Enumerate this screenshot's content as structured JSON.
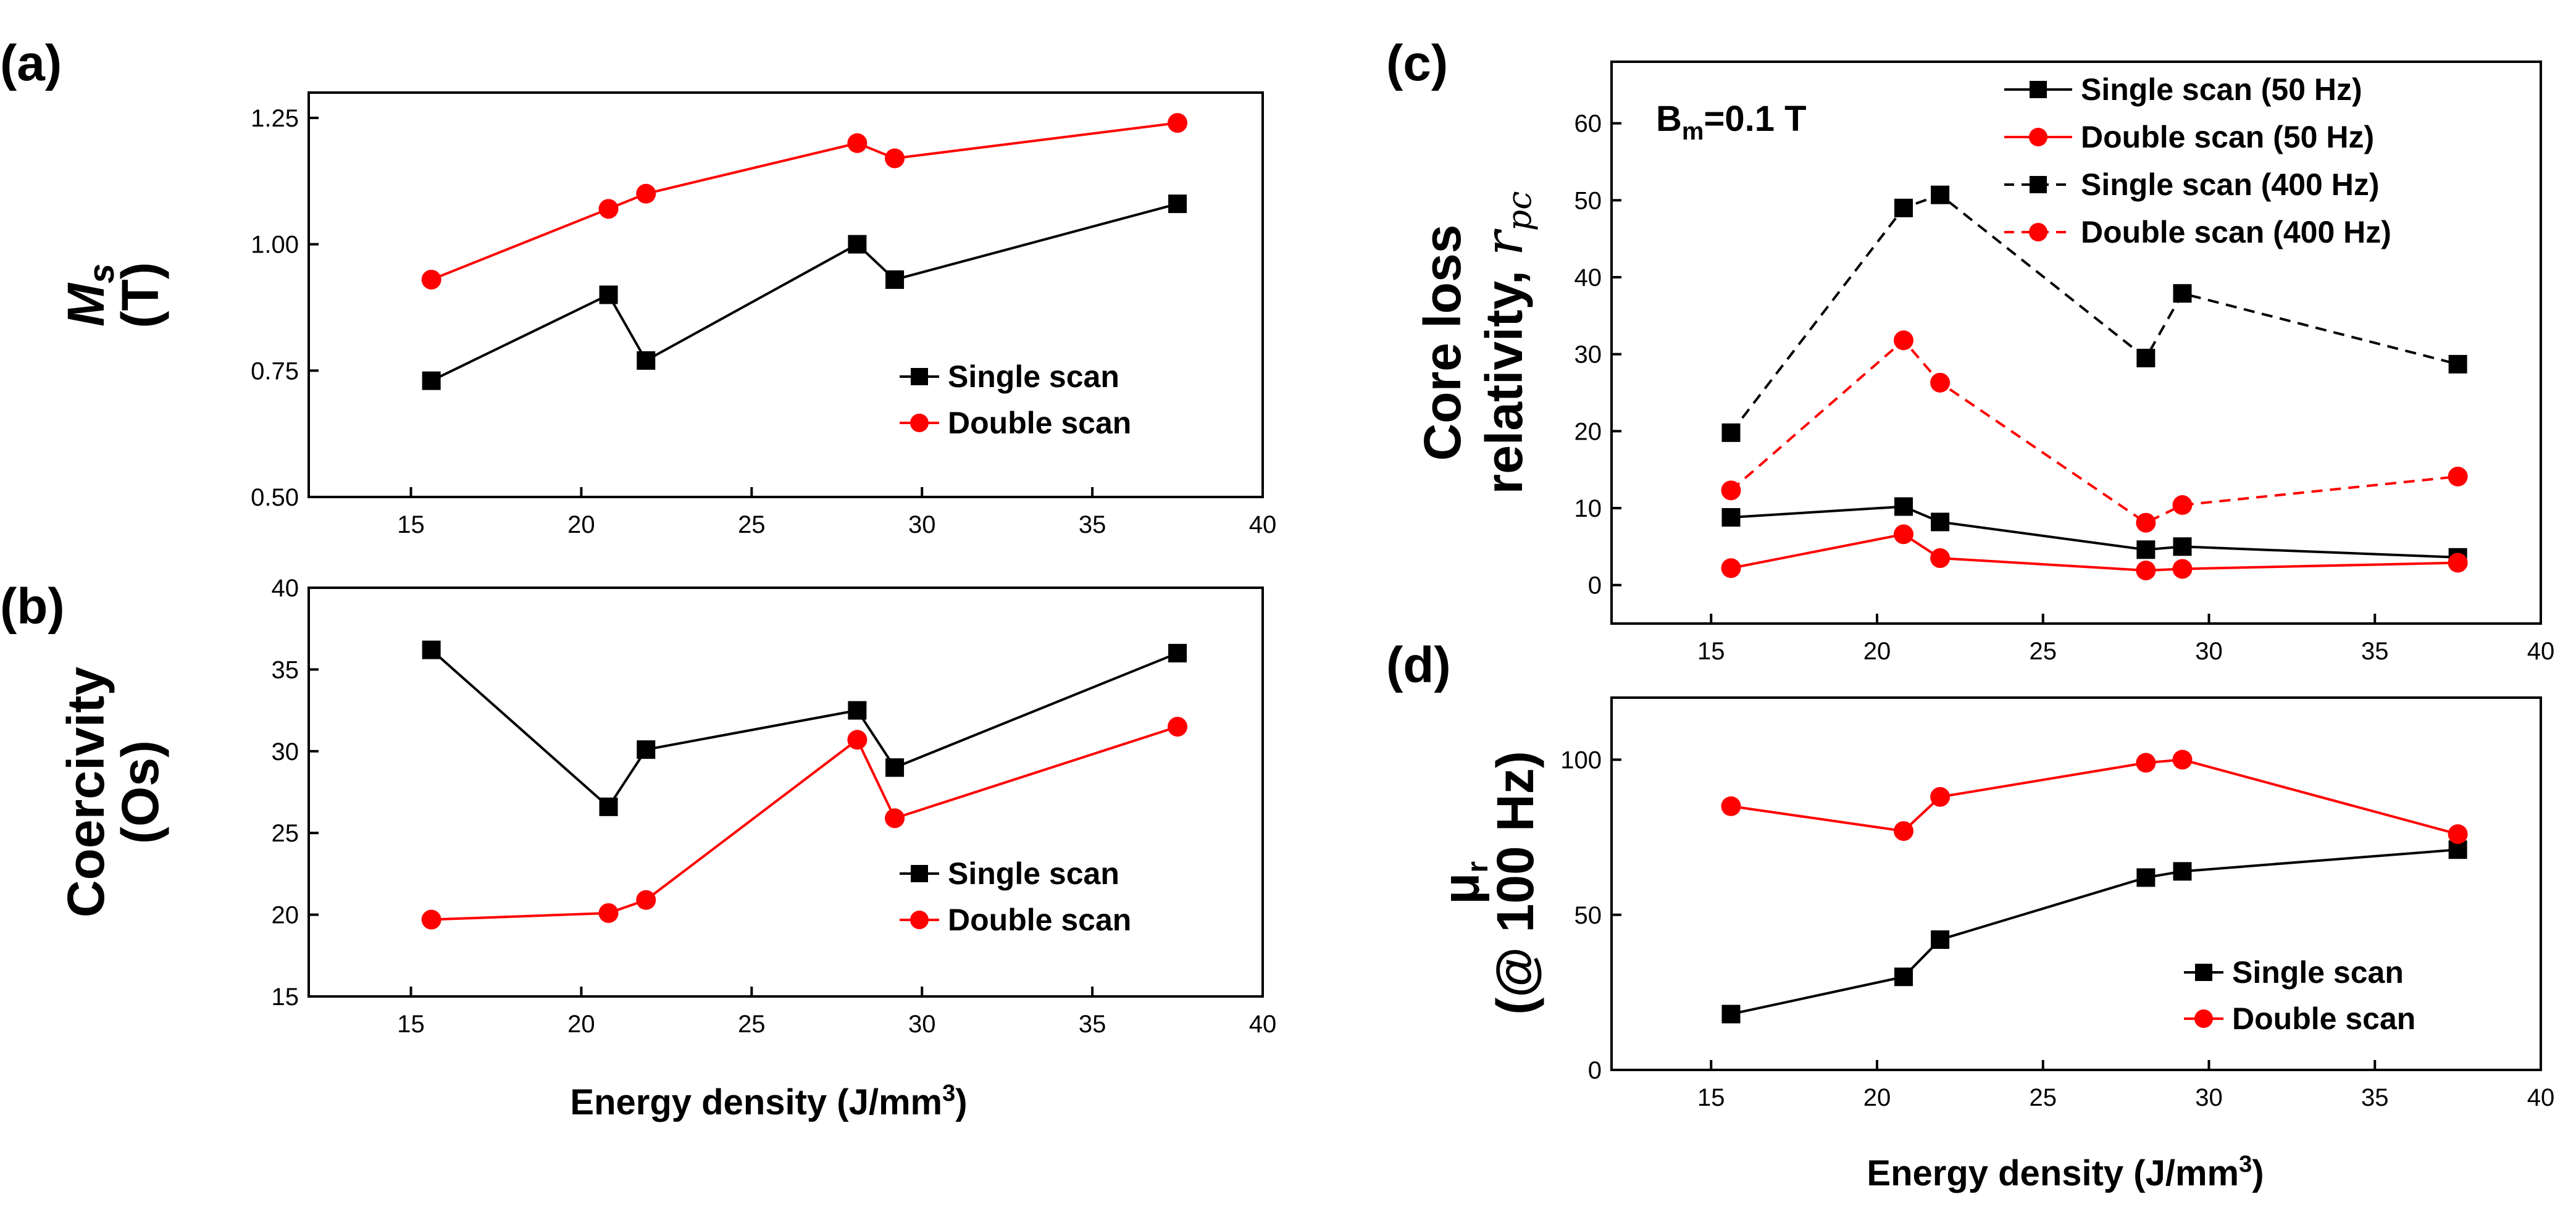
{
  "chart_data": [
    {
      "panel": "(a)",
      "type": "line",
      "xlabel": "",
      "ylabel": "M_s (T)",
      "ylabel_parts": {
        "symbol": "M",
        "sub": "s",
        "unit": "(T)"
      },
      "xlim": [
        12,
        40
      ],
      "ylim": [
        0.5,
        1.3
      ],
      "xticks": [
        15,
        20,
        25,
        30,
        35,
        40
      ],
      "yticks": [
        0.5,
        0.75,
        1.0,
        1.25
      ],
      "ytick_labels": [
        "0.50",
        "0.75",
        "1.00",
        "1.25"
      ],
      "x": [
        15.6,
        20.8,
        21.9,
        28.1,
        29.2,
        37.5
      ],
      "series": [
        {
          "name": "Single scan",
          "values": [
            0.73,
            0.9,
            0.77,
            1.0,
            0.93,
            1.08
          ],
          "color": "#000000",
          "marker": "square",
          "dashed": false
        },
        {
          "name": "Double scan",
          "values": [
            0.93,
            1.07,
            1.1,
            1.2,
            1.17,
            1.24
          ],
          "color": "#ff0000",
          "marker": "circle",
          "dashed": false
        }
      ],
      "legend_position": "bottom-right"
    },
    {
      "panel": "(b)",
      "type": "line",
      "xlabel": "Energy density (J/mm3)",
      "xlabel_parts": {
        "main": "Energy density (J/mm",
        "sup": "3",
        "end": ")"
      },
      "ylabel": "Coercivity (Os)",
      "ylabel_parts": {
        "line1": "Coercivity",
        "line2": "(Os)"
      },
      "xlim": [
        12,
        40
      ],
      "ylim": [
        15,
        40
      ],
      "xticks": [
        15,
        20,
        25,
        30,
        35,
        40
      ],
      "yticks": [
        15,
        20,
        25,
        30,
        35,
        40
      ],
      "ytick_labels": [
        "15",
        "20",
        "25",
        "30",
        "35",
        "40"
      ],
      "x": [
        15.6,
        20.8,
        21.9,
        28.1,
        29.2,
        37.5
      ],
      "series": [
        {
          "name": "Single scan",
          "values": [
            36.2,
            26.6,
            30.1,
            32.5,
            29.0,
            36.0
          ],
          "color": "#000000",
          "marker": "square",
          "dashed": false
        },
        {
          "name": "Double scan",
          "values": [
            19.7,
            20.1,
            20.9,
            30.7,
            25.9,
            31.5
          ],
          "color": "#ff0000",
          "marker": "circle",
          "dashed": false
        }
      ],
      "legend_position": "bottom-right"
    },
    {
      "panel": "(c)",
      "type": "line",
      "xlabel": "",
      "ylabel": "Core loss relativity, r_pc",
      "ylabel_parts": {
        "line1": "Core loss",
        "line2": "relativity, ",
        "var": "r",
        "sub": "pc"
      },
      "annotation": {
        "main": "B",
        "sub": "m",
        "rest": "=0.1 T"
      },
      "xlim": [
        12,
        40
      ],
      "ylim": [
        -5,
        68
      ],
      "xticks": [
        15,
        20,
        25,
        30,
        35,
        40
      ],
      "yticks": [
        0,
        10,
        20,
        30,
        40,
        50,
        60
      ],
      "ytick_labels": [
        "0",
        "10",
        "20",
        "30",
        "40",
        "50",
        "60"
      ],
      "x": [
        15.6,
        20.8,
        21.9,
        28.1,
        29.2,
        37.5
      ],
      "series": [
        {
          "name": "Single scan (50 Hz)",
          "values": [
            8.8,
            10.2,
            8.2,
            4.6,
            5.0,
            3.6
          ],
          "color": "#000000",
          "marker": "square",
          "dashed": false
        },
        {
          "name": "Double scan (50 Hz)",
          "values": [
            2.2,
            6.6,
            3.5,
            1.9,
            2.1,
            2.9
          ],
          "color": "#ff0000",
          "marker": "circle",
          "dashed": false
        },
        {
          "name": "Single scan (400 Hz)",
          "values": [
            19.8,
            49.0,
            50.7,
            29.5,
            37.9,
            28.7
          ],
          "color": "#000000",
          "marker": "square",
          "dashed": true
        },
        {
          "name": "Double scan (400 Hz)",
          "values": [
            12.3,
            31.8,
            26.3,
            8.1,
            10.4,
            14.1
          ],
          "color": "#ff0000",
          "marker": "circle",
          "dashed": true
        }
      ],
      "legend_position": "top-right"
    },
    {
      "panel": "(d)",
      "type": "line",
      "xlabel": "Energy density (J/mm3)",
      "xlabel_parts": {
        "main": "Energy density (J/mm",
        "sup": "3",
        "end": ")"
      },
      "ylabel": "μr (@ 100 Hz)",
      "ylabel_parts": {
        "symbol": "μ",
        "sub": "r",
        "line2": "(@ 100 Hz)"
      },
      "xlim": [
        12,
        40
      ],
      "ylim": [
        0,
        120
      ],
      "xticks": [
        15,
        20,
        25,
        30,
        35,
        40
      ],
      "yticks": [
        0,
        50,
        100
      ],
      "ytick_labels": [
        "0",
        "50",
        "100"
      ],
      "x": [
        15.6,
        20.8,
        21.9,
        28.1,
        29.2,
        37.5
      ],
      "series": [
        {
          "name": "Single scan",
          "values": [
            18,
            30,
            42,
            62,
            64,
            71
          ],
          "color": "#000000",
          "marker": "square",
          "dashed": false
        },
        {
          "name": "Double scan",
          "values": [
            85,
            77,
            88,
            99,
            100,
            76
          ],
          "color": "#ff0000",
          "marker": "circle",
          "dashed": false
        }
      ],
      "legend_position": "bottom-right"
    }
  ]
}
